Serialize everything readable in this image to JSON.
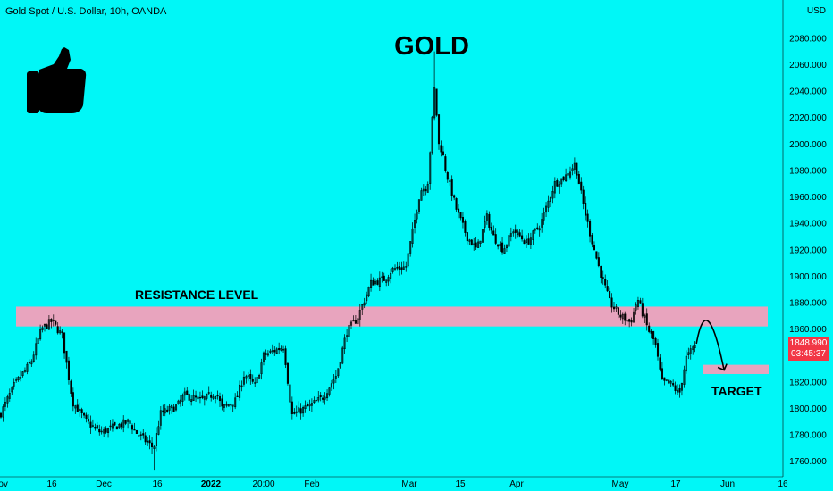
{
  "header": {
    "symbol": "Gold Spot / U.S. Dollar, 10h, OANDA",
    "currency": "USD"
  },
  "last_price": {
    "value": "1848.990",
    "countdown": "03:45:37",
    "color": "#F23645"
  },
  "colors": {
    "background": "#00F7F7",
    "zone": "#E8A4BE",
    "candle": "#000000"
  },
  "icons": [
    "thumbs-up-icon"
  ],
  "chart_data": {
    "type": "candlestick",
    "title": "GOLD",
    "ylim": [
      1750,
      2100
    ],
    "y_ticks": [
      1760,
      1780,
      1800,
      1820,
      1840,
      1860,
      1880,
      1900,
      1920,
      1940,
      1960,
      1980,
      2000,
      2020,
      2040,
      2060,
      2080
    ],
    "y_tick_labels": [
      "1760.000",
      "1780.000",
      "1800.000",
      "1820.000",
      "1840.000",
      "1860.000",
      "1880.000",
      "1900.000",
      "1920.000",
      "1940.000",
      "1960.000",
      "1980.000",
      "2000.000",
      "2020.000",
      "2040.000",
      "2060.000",
      "2080.000"
    ],
    "x_tick_labels": [
      "Nov",
      "16",
      "Dec",
      "16",
      "2022",
      "20:00",
      "Feb",
      "Mar",
      "15",
      "Apr",
      "May",
      "17",
      "Jun",
      "16"
    ],
    "x_tick_bold": [
      false,
      false,
      false,
      false,
      true,
      false,
      false,
      false,
      false,
      false,
      false,
      false,
      false,
      false
    ],
    "close_path": [
      [
        "2021-11-01",
        1795
      ],
      [
        "2021-11-05",
        1817
      ],
      [
        "2021-11-10",
        1835
      ],
      [
        "2021-11-13",
        1860
      ],
      [
        "2021-11-16",
        1866
      ],
      [
        "2021-11-19",
        1855
      ],
      [
        "2021-11-22",
        1805
      ],
      [
        "2021-11-26",
        1790
      ],
      [
        "2021-11-30",
        1782
      ],
      [
        "2021-12-03",
        1785
      ],
      [
        "2021-12-08",
        1790
      ],
      [
        "2021-12-10",
        1782
      ],
      [
        "2021-12-15",
        1770
      ],
      [
        "2021-12-17",
        1796
      ],
      [
        "2021-12-22",
        1802
      ],
      [
        "2021-12-24",
        1810
      ],
      [
        "2021-12-29",
        1806
      ],
      [
        "2022-01-03",
        1812
      ],
      [
        "2022-01-05",
        1800
      ],
      [
        "2022-01-10",
        1806
      ],
      [
        "2022-01-13",
        1826
      ],
      [
        "2022-01-17",
        1817
      ],
      [
        "2022-01-20",
        1840
      ],
      [
        "2022-01-25",
        1847
      ],
      [
        "2022-01-27",
        1795
      ],
      [
        "2022-02-01",
        1803
      ],
      [
        "2022-02-04",
        1808
      ],
      [
        "2022-02-08",
        1825
      ],
      [
        "2022-02-11",
        1858
      ],
      [
        "2022-02-14",
        1868
      ],
      [
        "2022-02-18",
        1895
      ],
      [
        "2022-02-22",
        1898
      ],
      [
        "2022-02-24",
        1905
      ],
      [
        "2022-02-28",
        1907
      ],
      [
        "2022-03-02",
        1935
      ],
      [
        "2022-03-04",
        1965
      ],
      [
        "2022-03-06",
        1968
      ],
      [
        "2022-03-08",
        2045
      ],
      [
        "2022-03-09",
        2000
      ],
      [
        "2022-03-10",
        1995
      ],
      [
        "2022-03-11",
        1980
      ],
      [
        "2022-03-14",
        1950
      ],
      [
        "2022-03-17",
        1930
      ],
      [
        "2022-03-20",
        1920
      ],
      [
        "2022-03-23",
        1945
      ],
      [
        "2022-03-25",
        1930
      ],
      [
        "2022-03-28",
        1920
      ],
      [
        "2022-03-31",
        1935
      ],
      [
        "2022-04-04",
        1925
      ],
      [
        "2022-04-08",
        1940
      ],
      [
        "2022-04-12",
        1970
      ],
      [
        "2022-04-15",
        1975
      ],
      [
        "2022-04-18",
        1985
      ],
      [
        "2022-04-20",
        1958
      ],
      [
        "2022-04-22",
        1935
      ],
      [
        "2022-04-25",
        1905
      ],
      [
        "2022-04-28",
        1880
      ],
      [
        "2022-05-01",
        1870
      ],
      [
        "2022-05-04",
        1865
      ],
      [
        "2022-05-06",
        1883
      ],
      [
        "2022-05-09",
        1860
      ],
      [
        "2022-05-11",
        1850
      ],
      [
        "2022-05-13",
        1820
      ],
      [
        "2022-05-16",
        1818
      ],
      [
        "2022-05-18",
        1810
      ],
      [
        "2022-05-20",
        1838
      ],
      [
        "2022-05-23",
        1849
      ]
    ],
    "peak": [
      "2022-03-08",
      2070
    ],
    "low": [
      "2021-12-15",
      1753
    ],
    "annotations": {
      "resistance_label": "RESISTANCE LEVEL",
      "target_label": "TARGET",
      "resistance_zone": [
        1862,
        1877
      ],
      "target_zone": [
        1826,
        1833
      ]
    },
    "projection": [
      [
        "2022-05-23",
        1849
      ],
      [
        "2022-05-26",
        1868
      ],
      [
        "2022-05-31",
        1829
      ]
    ],
    "grid": false,
    "legend": "none"
  }
}
